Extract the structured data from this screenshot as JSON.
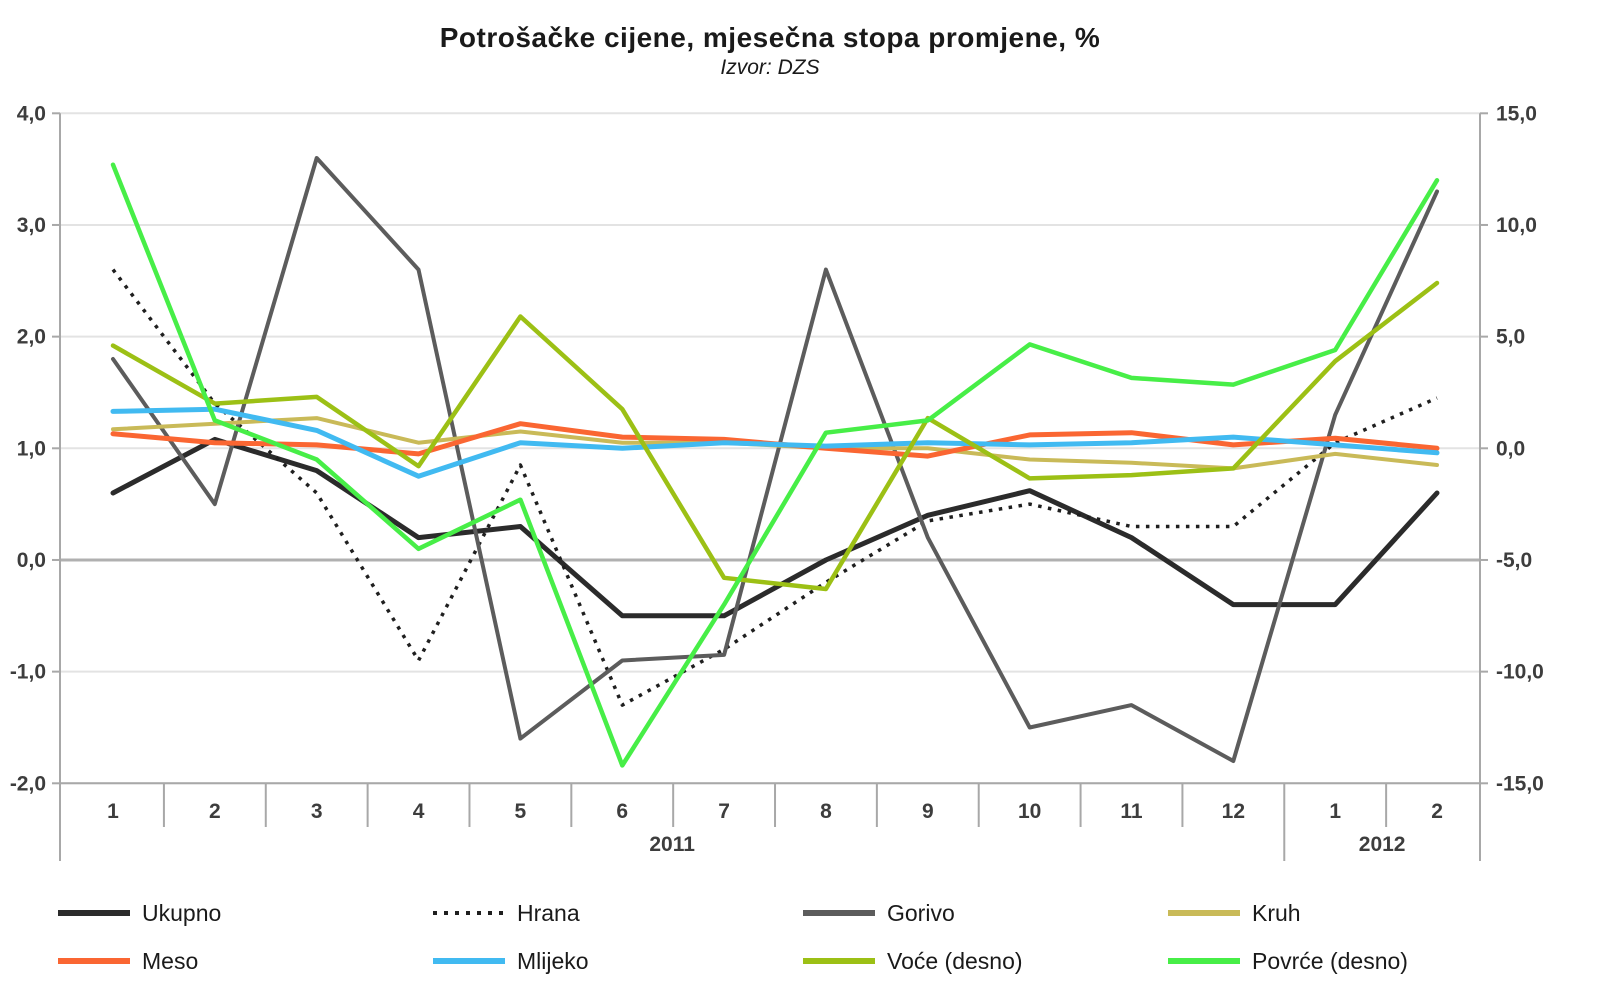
{
  "chart_data": {
    "type": "line",
    "title": "Potrošačke cijene, mjesečna stopa promjene, %",
    "subtitle": "Izvor: DZS",
    "categories": [
      "1",
      "2",
      "3",
      "4",
      "5",
      "6",
      "7",
      "8",
      "9",
      "10",
      "11",
      "12",
      "1",
      "2"
    ],
    "year_groups": [
      {
        "label": "2011",
        "from": 0,
        "to": 11
      },
      {
        "label": "2012",
        "from": 12,
        "to": 13
      }
    ],
    "left_axis": {
      "max": 4.0,
      "min": -2.0,
      "step": 1.0,
      "tick_labels": [
        "4,0",
        "3,0",
        "2,0",
        "1,0",
        "0,0",
        "-1,0",
        "-2,0"
      ]
    },
    "right_axis": {
      "max": 15.0,
      "min": -15.0,
      "step": 5.0,
      "tick_labels": [
        "15,0",
        "10,0",
        "5,0",
        "0,0",
        "-5,0",
        "-10,0",
        "-15,0"
      ]
    },
    "zero_line_left_value": 0.0,
    "grid": true,
    "legend_position": "bottom",
    "series": [
      {
        "name": "Ukupno",
        "axis": "left",
        "color": "#2b2b2b",
        "style": "solid",
        "width": 5,
        "values": [
          0.6,
          1.08,
          0.8,
          0.2,
          0.3,
          -0.5,
          -0.5,
          0.0,
          0.4,
          0.62,
          0.2,
          -0.4,
          -0.4,
          0.6
        ]
      },
      {
        "name": "Hrana",
        "axis": "left",
        "color": "#1f1f1f",
        "style": "dotted",
        "width": 3.5,
        "values": [
          2.6,
          1.4,
          0.6,
          -0.9,
          0.85,
          -1.3,
          -0.8,
          -0.2,
          0.35,
          0.5,
          0.3,
          0.3,
          1.05,
          1.45
        ]
      },
      {
        "name": "Gorivo",
        "axis": "left",
        "color": "#5c5c5c",
        "style": "solid",
        "width": 4,
        "values": [
          1.8,
          0.5,
          3.6,
          2.6,
          -1.6,
          -0.9,
          -0.85,
          2.6,
          0.2,
          -1.5,
          -1.3,
          -1.8,
          1.3,
          3.3
        ]
      },
      {
        "name": "Kruh",
        "axis": "left",
        "color": "#c9ba58",
        "style": "solid",
        "width": 4,
        "values": [
          1.17,
          1.22,
          1.27,
          1.05,
          1.15,
          1.05,
          1.05,
          1.0,
          1.0,
          0.9,
          0.87,
          0.82,
          0.95,
          0.85
        ]
      },
      {
        "name": "Meso",
        "axis": "left",
        "color": "#fa6632",
        "style": "solid",
        "width": 5,
        "values": [
          1.13,
          1.05,
          1.03,
          0.95,
          1.22,
          1.1,
          1.08,
          1.0,
          0.93,
          1.12,
          1.14,
          1.03,
          1.09,
          1.0
        ]
      },
      {
        "name": "Mlijeko",
        "axis": "left",
        "color": "#41baf1",
        "style": "solid",
        "width": 5,
        "values": [
          1.33,
          1.35,
          1.16,
          0.75,
          1.05,
          1.0,
          1.05,
          1.02,
          1.05,
          1.03,
          1.05,
          1.1,
          1.03,
          0.96
        ]
      },
      {
        "name": "Voće (desno)",
        "axis": "right",
        "color": "#9cc015",
        "style": "solid",
        "width": 4.5,
        "values": [
          4.6,
          2.0,
          2.3,
          -0.8,
          5.9,
          1.75,
          -5.8,
          -6.3,
          1.35,
          -1.35,
          -1.2,
          -0.9,
          3.9,
          7.4
        ]
      },
      {
        "name": "Povrće (desno)",
        "axis": "right",
        "color": "#47ee47",
        "style": "solid",
        "width": 4.5,
        "values": [
          12.7,
          1.25,
          -0.5,
          -4.5,
          -2.3,
          -14.2,
          -7.0,
          0.7,
          1.25,
          4.65,
          3.15,
          2.85,
          4.4,
          12.0
        ]
      }
    ],
    "style_colors": {
      "gridline": "#e3e3e3",
      "zero_line": "#b0b0b0",
      "axis_line": "#a8a8a8",
      "tick_text": "#3d3d3d"
    }
  }
}
